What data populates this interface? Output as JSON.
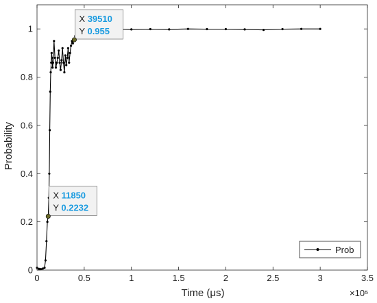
{
  "chart_data": {
    "type": "line",
    "xlabel": "Time (μs)",
    "ylabel": "Probability",
    "x_exponent": "×10⁵",
    "xlim": [
      0,
      350000
    ],
    "ylim": [
      0,
      1.1
    ],
    "x_ticks": [
      0,
      50000,
      100000,
      150000,
      200000,
      250000,
      300000,
      350000
    ],
    "x_tick_labels": [
      "0",
      "0.5",
      "1",
      "1.5",
      "2",
      "2.5",
      "3",
      "3.5"
    ],
    "y_ticks": [
      0,
      0.2,
      0.4,
      0.6,
      0.8,
      1
    ],
    "y_tick_labels": [
      "0",
      "0.2",
      "0.4",
      "0.6",
      "0.8",
      "1"
    ],
    "grid": false,
    "legend_position": "bottom-right",
    "series": [
      {
        "name": "Prob",
        "color": "#000000",
        "marker": "dot",
        "x": [
          0,
          2000,
          4000,
          6000,
          8000,
          9000,
          10000,
          11000,
          11850,
          12500,
          13000,
          13500,
          14000,
          14500,
          15000,
          15500,
          16000,
          16500,
          17000,
          18000,
          19000,
          20000,
          21000,
          22000,
          23000,
          24000,
          25000,
          26000,
          27000,
          28000,
          29000,
          30000,
          31000,
          32000,
          33000,
          34000,
          35000,
          36000,
          37000,
          38000,
          39510,
          40500,
          41500,
          42500,
          43500,
          45000,
          47000,
          50000,
          55000,
          60000,
          65000,
          70000,
          75000,
          80000,
          90000,
          100000,
          120000,
          140000,
          160000,
          180000,
          200000,
          220000,
          240000,
          260000,
          280000,
          300000
        ],
        "y": [
          0.01,
          0.005,
          0.004,
          0.006,
          0.01,
          0.04,
          0.12,
          0.2,
          0.2232,
          0.3,
          0.4,
          0.58,
          0.74,
          0.82,
          0.86,
          0.9,
          0.88,
          0.84,
          0.86,
          0.95,
          0.88,
          0.84,
          0.86,
          0.88,
          0.91,
          0.86,
          0.83,
          0.87,
          0.92,
          0.86,
          0.82,
          0.89,
          0.85,
          0.88,
          0.92,
          0.86,
          0.9,
          0.93,
          0.95,
          0.94,
          0.955,
          0.97,
          0.985,
          0.99,
          0.995,
          0.99,
          1.0,
          0.995,
          0.998,
          0.99,
          0.997,
          0.998,
          0.999,
          0.995,
          0.999,
          0.998,
          0.999,
          0.998,
          1.0,
          0.999,
          0.999,
          0.998,
          0.996,
          0.999,
          1.0,
          1.0
        ]
      }
    ],
    "datatips": [
      {
        "x_label": "X",
        "x_value": "11850",
        "y_label": "Y",
        "y_value": "0.2232",
        "point_x": 11850,
        "point_y": 0.2232
      },
      {
        "x_label": "X",
        "x_value": "39510",
        "y_label": "Y",
        "y_value": "0.955",
        "point_x": 39510,
        "point_y": 0.955
      }
    ],
    "datatip_value_color": "#1a9be0"
  }
}
